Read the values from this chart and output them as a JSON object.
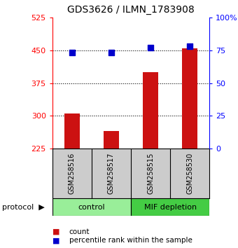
{
  "title": "GDS3626 / ILMN_1783908",
  "samples": [
    "GSM258516",
    "GSM258517",
    "GSM258515",
    "GSM258530"
  ],
  "counts": [
    305,
    265,
    400,
    455
  ],
  "percentiles": [
    73,
    73,
    77,
    78
  ],
  "groups": [
    {
      "label": "control",
      "start": 0,
      "end": 2,
      "color": "#99ee99"
    },
    {
      "label": "MIF depletion",
      "start": 2,
      "end": 4,
      "color": "#44cc44"
    }
  ],
  "ylim_left": [
    225,
    525
  ],
  "ylim_right": [
    0,
    100
  ],
  "yticks_left": [
    225,
    300,
    375,
    450,
    525
  ],
  "yticks_right": [
    0,
    25,
    50,
    75,
    100
  ],
  "bar_color": "#cc1111",
  "dot_color": "#0000cc",
  "bar_width": 0.4,
  "sample_box_color": "#cccccc",
  "protocol_label": "protocol",
  "legend_count_label": "count",
  "legend_pct_label": "percentile rank within the sample",
  "background_color": "#ffffff",
  "grid_yticks": [
    300,
    375,
    450
  ]
}
